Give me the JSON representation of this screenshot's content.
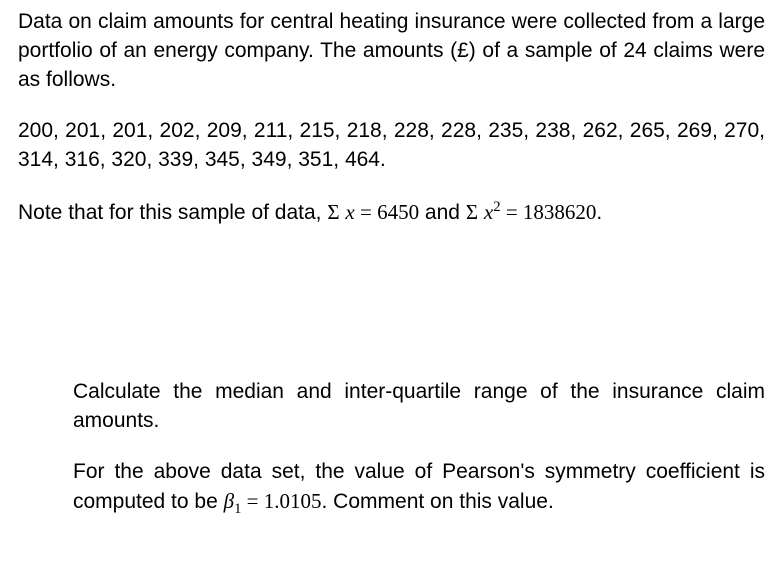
{
  "intro": {
    "text": "Data on claim amounts for central heating insurance were collected from a large portfolio of an energy company. The amounts (£) of a sample of 24 claims were as follows."
  },
  "claims": {
    "values": "200, 201, 201, 202, 209, 211, 215, 218, 228, 228, 235, 238, 262, 265, 269, 270, 314, 316, 320, 339, 345, 349, 351, 464."
  },
  "note": {
    "prefix": "Note that for this sample of data, ",
    "sigma": "Σ",
    "var_x": "x",
    "eq": " = ",
    "sum_x": "6450",
    "and": " and ",
    "exp2": "2",
    "sum_x2": "1838620",
    "period": "."
  },
  "question1": {
    "text": "Calculate the median and inter-quartile range of the insurance claim amounts."
  },
  "question2": {
    "part1": "For the above data set, the value of Pearson's symmetry coefficient is computed to be ",
    "beta": "β",
    "sub1": "1",
    "eq": " = ",
    "val": "1.0105",
    "part2": ". Comment on this value."
  }
}
